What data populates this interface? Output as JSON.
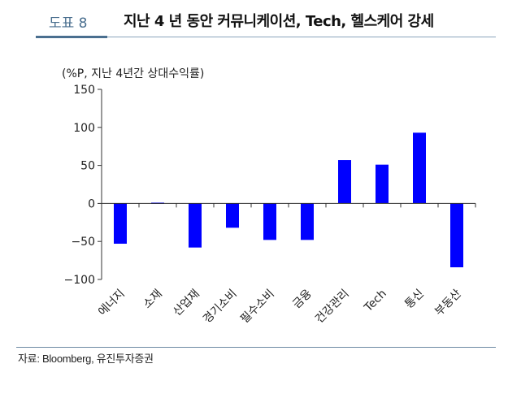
{
  "header": {
    "figure_label": "도표 8",
    "title": "지난 4 년 동안 커뮤니케이션, Tech, 헬스케어 강세"
  },
  "chart_data": {
    "type": "bar",
    "unit_label": "(%P,  지난 4년간 상대수익률)",
    "categories": [
      "에너지",
      "소재",
      "산업재",
      "경기소비",
      "필수소비",
      "금융",
      "건강관리",
      "Tech",
      "통신",
      "부동산"
    ],
    "values": [
      -53,
      1,
      -58,
      -32,
      -48,
      -48,
      57,
      51,
      93,
      -84
    ],
    "ylim": [
      -100,
      150
    ],
    "yticks": [
      150,
      100,
      50,
      0,
      -50,
      -100
    ],
    "ytick_labels": [
      "150",
      "100",
      "50",
      "0",
      "−50",
      "−100"
    ],
    "bar_color": "#0000ff",
    "xlabel": "",
    "ylabel": ""
  },
  "footer": {
    "source": "자료: Bloomberg, 유진투자증권"
  }
}
